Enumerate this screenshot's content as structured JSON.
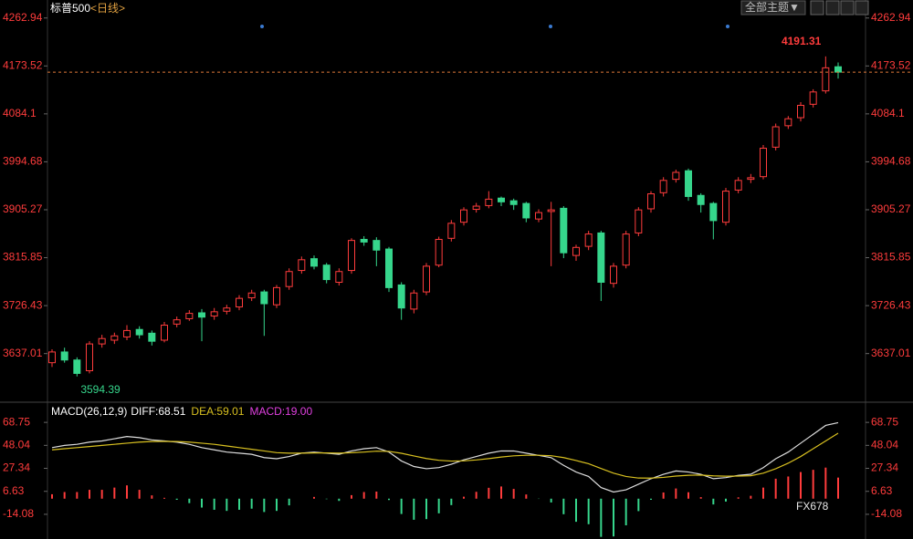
{
  "title": "标普500",
  "period": "<日线>",
  "toolbar": {
    "theme": "全部主题▼"
  },
  "watermark": "FX678",
  "chart_data": [
    {
      "type": "candlestick",
      "open": [
        3620,
        3640,
        3625,
        3605,
        3655,
        3662,
        3668,
        3682,
        3675,
        3662,
        3692,
        3702,
        3713,
        3707,
        3716,
        3724,
        3741,
        3752,
        3728,
        3762,
        3792,
        3814,
        3802,
        3770,
        3792,
        3850,
        3848,
        3832,
        3765,
        3720,
        3752,
        3802,
        3852,
        3882,
        3906,
        3913,
        3927,
        3922,
        3917,
        3888,
        3902,
        3908,
        3820,
        3837,
        3862,
        3768,
        3802,
        3862,
        3907,
        3937,
        3962,
        3978,
        3932,
        3917,
        3882,
        3942,
        3962,
        3967,
        4022,
        4062,
        4077,
        4102,
        4127,
        4172
      ],
      "high": [
        3645,
        3648,
        3630,
        3660,
        3672,
        3676,
        3690,
        3688,
        3680,
        3696,
        3706,
        3718,
        3720,
        3722,
        3728,
        3746,
        3756,
        3756,
        3765,
        3796,
        3818,
        3820,
        3806,
        3796,
        3852,
        3856,
        3854,
        3836,
        3770,
        3756,
        3806,
        3855,
        3886,
        3910,
        3918,
        3940,
        3930,
        3926,
        3920,
        3906,
        3920,
        3912,
        3840,
        3866,
        3866,
        3806,
        3866,
        3910,
        3940,
        3966,
        3980,
        3982,
        3936,
        3920,
        3946,
        3966,
        3972,
        4026,
        4066,
        4080,
        4106,
        4130,
        4191.31,
        4180
      ],
      "low": [
        3612,
        3620,
        3594.39,
        3600,
        3648,
        3655,
        3662,
        3665,
        3652,
        3658,
        3686,
        3698,
        3660,
        3700,
        3710,
        3718,
        3735,
        3670,
        3722,
        3756,
        3786,
        3794,
        3768,
        3764,
        3786,
        3838,
        3800,
        3752,
        3700,
        3712,
        3746,
        3798,
        3846,
        3876,
        3900,
        3908,
        3912,
        3905,
        3882,
        3882,
        3800,
        3815,
        3810,
        3830,
        3735,
        3760,
        3796,
        3856,
        3900,
        3930,
        3956,
        3922,
        3900,
        3850,
        3876,
        3936,
        3955,
        3962,
        4016,
        4056,
        4070,
        4096,
        4122,
        4150
      ],
      "close": [
        3640,
        3625,
        3600,
        3655,
        3665,
        3670,
        3680,
        3672,
        3660,
        3690,
        3700,
        3712,
        3705,
        3715,
        3722,
        3740,
        3750,
        3730,
        3760,
        3790,
        3812,
        3800,
        3775,
        3790,
        3848,
        3845,
        3830,
        3760,
        3722,
        3750,
        3800,
        3850,
        3880,
        3905,
        3912,
        3925,
        3920,
        3915,
        3890,
        3900,
        3905,
        3825,
        3835,
        3860,
        3770,
        3800,
        3860,
        3905,
        3935,
        3960,
        3975,
        3930,
        3915,
        3885,
        3940,
        3960,
        3965,
        4020,
        4060,
        4075,
        4100,
        4125,
        4170,
        4162
      ],
      "colors": {
        "up": "#ff3c3c",
        "down": "#36d68c"
      },
      "ylim": [
        3548,
        4288
      ],
      "yticks": [
        3637.01,
        3726.43,
        3815.85,
        3905.27,
        3994.68,
        4084.1,
        4173.52,
        4262.94
      ]
    },
    {
      "type": "macd",
      "title": "MACD(26,12,9)",
      "series": [
        {
          "name": "DIFF:",
          "color": "#dddddd",
          "values": [
            46,
            48,
            49,
            51,
            52,
            54,
            56,
            55,
            53,
            52,
            51,
            49,
            46,
            44,
            42,
            41,
            40,
            37,
            36,
            38,
            41,
            42,
            41,
            40,
            43,
            45,
            46,
            42,
            34,
            29,
            27,
            28,
            31,
            35,
            38,
            41,
            43,
            43,
            41,
            39,
            37,
            30,
            24,
            20,
            10,
            6,
            8,
            13,
            18,
            22,
            25,
            24,
            22,
            18,
            19,
            21,
            22,
            28,
            36,
            42,
            50,
            58,
            66,
            68.51
          ]
        },
        {
          "name": "DEA:",
          "color": "#d8c020",
          "values": [
            44,
            45,
            46,
            47,
            48,
            49,
            50,
            51,
            51.5,
            51.6,
            51.5,
            51,
            50,
            49,
            47.5,
            46,
            44.5,
            43,
            41.5,
            41,
            41,
            41.2,
            41.2,
            41,
            41.4,
            42,
            42.8,
            42.6,
            40.9,
            38.5,
            36.2,
            34.6,
            33.9,
            34.1,
            34.9,
            36.1,
            37.5,
            38.6,
            39.1,
            39.1,
            38.7,
            37,
            34.4,
            31.5,
            27.2,
            23,
            20,
            18.6,
            18.5,
            19.2,
            20.4,
            21.1,
            21.3,
            20.6,
            20.3,
            20.4,
            20.7,
            23,
            27,
            32,
            38,
            45,
            52,
            59.01
          ]
        },
        {
          "name": "MACD:",
          "color": "#e040e0",
          "up_color": "#ff3c3c",
          "down_color": "#36d68c",
          "values": [
            4,
            6,
            6,
            8,
            8,
            10,
            12,
            8,
            3,
            0.8,
            -1,
            -4,
            -8,
            -10,
            -11,
            -10,
            -9,
            -12,
            -11,
            -6,
            0,
            1.6,
            -0.4,
            -2,
            3.2,
            6,
            6.4,
            -1.2,
            -13.8,
            -19,
            -18.4,
            -13.2,
            -5.8,
            1.8,
            6.2,
            9.8,
            11,
            8.8,
            3.8,
            -0.2,
            -3.4,
            -14,
            -20.8,
            -23,
            -34.4,
            -34,
            -24,
            -11.2,
            -1,
            5.6,
            9.2,
            5.8,
            1.4,
            -5.2,
            -2.6,
            1.2,
            2.6,
            10,
            18,
            20,
            24,
            26,
            28,
            19
          ],
          "value_labels": [
            null,
            null,
            null,
            null,
            null,
            null,
            null,
            null,
            null,
            null,
            null,
            null,
            null,
            null,
            null,
            null,
            null,
            null,
            null,
            null,
            null,
            null,
            null,
            null,
            null,
            null,
            null,
            null,
            null,
            null,
            null,
            null,
            null,
            null,
            null,
            null,
            null,
            null,
            null,
            null,
            null,
            null,
            null,
            null,
            null,
            null,
            null,
            null,
            null,
            null,
            null,
            null,
            null,
            null,
            null,
            null,
            null,
            null,
            null,
            null,
            null,
            null,
            null,
            "19.00"
          ]
        }
      ],
      "ylim": [
        -35.5,
        82
      ],
      "yticks": [
        -14.08,
        6.63,
        27.34,
        48.04,
        68.75
      ]
    }
  ]
}
